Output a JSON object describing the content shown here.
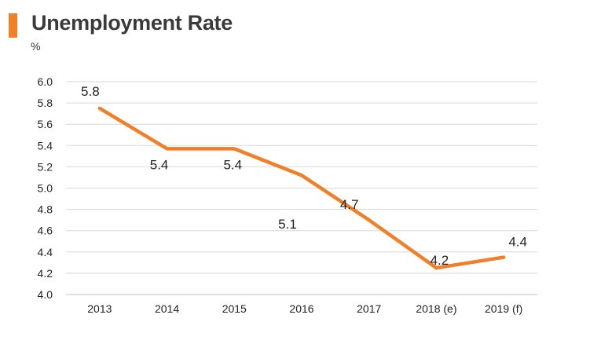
{
  "title": "Unemployment Rate",
  "unit": "%",
  "colors": {
    "accent": "#f07f2a",
    "grid": "#d9d9d9",
    "axis": "#bfbfbf"
  },
  "chart_data": {
    "type": "line",
    "categories": [
      "2013",
      "2014",
      "2015",
      "2016",
      "2017",
      "2018 (e)",
      "2019 (f)"
    ],
    "series": [
      {
        "values": [
          5.75,
          5.37,
          5.37,
          5.12,
          4.7,
          4.25,
          4.35
        ],
        "labels": [
          "5.8",
          "5.4",
          "5.4",
          "5.1",
          "4.7",
          "4.2",
          "4.4"
        ]
      }
    ],
    "ylim": [
      4.0,
      6.0
    ],
    "yticks": [
      "4.0",
      "4.2",
      "4.4",
      "4.6",
      "4.8",
      "5.0",
      "5.2",
      "5.4",
      "5.6",
      "5.8",
      "6.0"
    ],
    "grid": true,
    "legend": "none"
  }
}
